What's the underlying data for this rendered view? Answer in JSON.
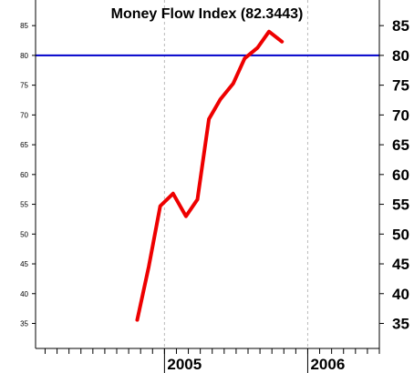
{
  "chart_data": {
    "type": "line",
    "title": "Money Flow Index (82.3443)",
    "xlabel": "",
    "ylabel": "",
    "ylim": [
      30.8,
      89.3
    ],
    "xlim": [
      2004.1,
      2006.5
    ],
    "y_ticks": [
      35,
      40,
      45,
      50,
      55,
      60,
      65,
      70,
      75,
      80,
      85
    ],
    "x_ticks": [
      {
        "label": "2005",
        "value": 2005.0
      },
      {
        "label": "2006",
        "value": 2006.0
      }
    ],
    "reference_line": {
      "value": 80,
      "color": "#0000cc"
    },
    "grid": "vertical dashed at year marks",
    "series": [
      {
        "color": "#ee0000",
        "points": [
          {
            "x": 2004.81,
            "y": 35.6
          },
          {
            "x": 2004.89,
            "y": 44.5
          },
          {
            "x": 2004.97,
            "y": 54.7
          },
          {
            "x": 2005.06,
            "y": 56.8
          },
          {
            "x": 2005.15,
            "y": 53.0
          },
          {
            "x": 2005.23,
            "y": 55.8
          },
          {
            "x": 2005.31,
            "y": 69.3
          },
          {
            "x": 2005.39,
            "y": 72.6
          },
          {
            "x": 2005.48,
            "y": 75.3
          },
          {
            "x": 2005.56,
            "y": 79.5
          },
          {
            "x": 2005.65,
            "y": 81.3
          },
          {
            "x": 2005.73,
            "y": 84.0
          },
          {
            "x": 2005.82,
            "y": 82.3
          }
        ]
      }
    ]
  }
}
